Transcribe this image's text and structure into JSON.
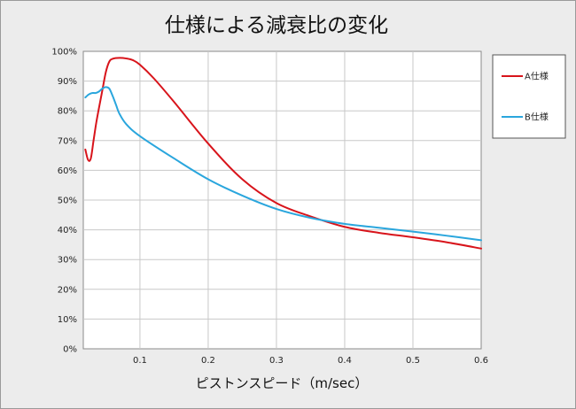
{
  "chart_data": {
    "type": "line",
    "title": "仕様による減衰比の変化",
    "xlabel": "ピストンスピード（m/sec）",
    "ylabel": "",
    "xlim": [
      0.017,
      0.6
    ],
    "ylim": [
      0,
      100
    ],
    "grid": true,
    "legend_position": "right",
    "x_ticks": [
      0.1,
      0.2,
      0.3,
      0.4,
      0.5,
      0.6
    ],
    "x_tick_labels": [
      "0.1",
      "0.2",
      "0.3",
      "0.4",
      "0.5",
      "0.6"
    ],
    "y_ticks": [
      0,
      10,
      20,
      30,
      40,
      50,
      60,
      70,
      80,
      90,
      100
    ],
    "y_tick_labels": [
      "0%",
      "10%",
      "20%",
      "30%",
      "40%",
      "50%",
      "60%",
      "70%",
      "80%",
      "90%",
      "100%"
    ],
    "series": [
      {
        "name": "A仕様",
        "color": "#d8141b",
        "x": [
          0.02,
          0.024,
          0.028,
          0.032,
          0.036,
          0.04,
          0.045,
          0.05,
          0.055,
          0.06,
          0.07,
          0.08,
          0.09,
          0.1,
          0.12,
          0.15,
          0.2,
          0.25,
          0.3,
          0.35,
          0.4,
          0.45,
          0.5,
          0.55,
          0.6
        ],
        "y": [
          67,
          63.5,
          64,
          70,
          76,
          81,
          87,
          93,
          96.5,
          97.5,
          97.8,
          97.6,
          97,
          95.5,
          91,
          83,
          69,
          57,
          49,
          44.5,
          41,
          39,
          37.5,
          35.8,
          33.7
        ]
      },
      {
        "name": "B仕様",
        "color": "#2aa6dd",
        "x": [
          0.02,
          0.025,
          0.03,
          0.035,
          0.04,
          0.045,
          0.05,
          0.055,
          0.06,
          0.065,
          0.07,
          0.08,
          0.1,
          0.15,
          0.2,
          0.25,
          0.3,
          0.35,
          0.4,
          0.45,
          0.5,
          0.55,
          0.6
        ],
        "y": [
          84.5,
          85.5,
          86,
          86,
          86.5,
          87.5,
          88,
          87.5,
          85,
          82,
          79,
          75.5,
          71.5,
          64,
          57,
          51.5,
          47,
          44,
          42,
          40.7,
          39.4,
          38,
          36.5
        ]
      }
    ]
  }
}
